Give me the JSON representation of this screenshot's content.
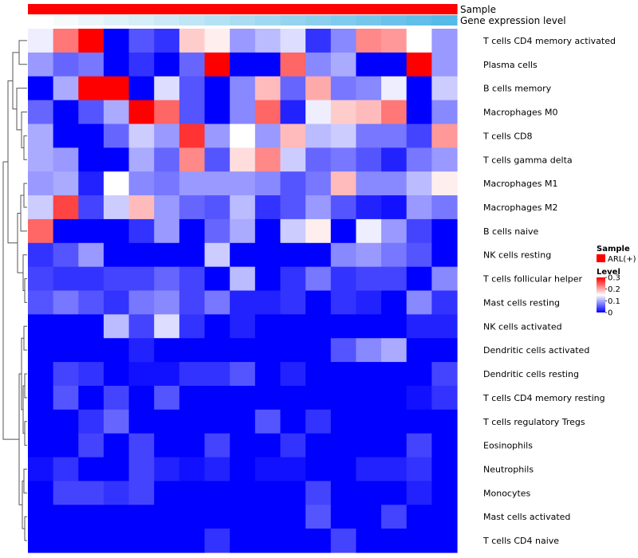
{
  "chart_data": {
    "type": "heatmap",
    "title": "",
    "annotations": [
      {
        "name": "Sample",
        "colors": [
          "#ff0000",
          "#ff0000",
          "#ff0000",
          "#ff0000",
          "#ff0000",
          "#ff0000",
          "#ff0000",
          "#ff0000",
          "#ff0000",
          "#ff0000",
          "#ff0000",
          "#ff0000",
          "#ff0000",
          "#ff0000",
          "#ff0000",
          "#ff0000",
          "#ff0000"
        ]
      },
      {
        "name": "Gene expression level",
        "colors": [
          "#ffffff",
          "#f5fbfd",
          "#eaf6fb",
          "#e0f2f9",
          "#d5eef8",
          "#cbe9f6",
          "#c0e5f5",
          "#b5e1f4",
          "#aadcf2",
          "#a0d8f1",
          "#95d3ef",
          "#8acfee",
          "#7fcbed",
          "#75c6eb",
          "#6ac2ea",
          "#60bee8",
          "#55bae7"
        ]
      }
    ],
    "rows": [
      "T cells CD4 memory activated",
      "Plasma cells",
      "B cells memory",
      "Macrophages M0",
      "T cells CD8",
      "T cells gamma delta",
      "Macrophages M1",
      "Macrophages M2",
      "B cells naive",
      "NK cells resting",
      "T cells follicular helper",
      "Mast cells resting",
      "NK cells activated",
      "Dendritic cells activated",
      "Dendritic cells resting",
      "T cells CD4 memory resting",
      "T cells regulatory  Tregs",
      "Eosinophils",
      "Neutrophils",
      "Monocytes",
      "Mast cells activated",
      "T cells CD4 naive"
    ],
    "values": [
      [
        0.14,
        0.23,
        0.3,
        0.0,
        0.05,
        0.03,
        0.18,
        0.16,
        0.09,
        0.11,
        0.13,
        0.03,
        0.08,
        0.22,
        0.21,
        0.15,
        0.09
      ],
      [
        0.09,
        0.06,
        0.07,
        0.0,
        0.03,
        0.0,
        0.06,
        0.3,
        0.0,
        0.0,
        0.24,
        0.08,
        0.1,
        0.0,
        0.0,
        0.3,
        0.09
      ],
      [
        0.0,
        0.1,
        0.3,
        0.3,
        0.0,
        0.13,
        0.05,
        0.0,
        0.08,
        0.19,
        0.06,
        0.2,
        0.07,
        0.08,
        0.14,
        0.0,
        0.12
      ],
      [
        0.06,
        0.0,
        0.05,
        0.1,
        0.3,
        0.24,
        0.05,
        0.0,
        0.08,
        0.24,
        0.02,
        0.14,
        0.18,
        0.19,
        0.23,
        0.0,
        0.08
      ],
      [
        0.1,
        0.0,
        0.0,
        0.06,
        0.12,
        0.09,
        0.27,
        0.09,
        0.15,
        0.09,
        0.19,
        0.11,
        0.12,
        0.07,
        0.07,
        0.04,
        0.21
      ],
      [
        0.1,
        0.09,
        0.0,
        0.0,
        0.1,
        0.06,
        0.22,
        0.05,
        0.17,
        0.22,
        0.12,
        0.06,
        0.07,
        0.05,
        0.02,
        0.07,
        0.09
      ],
      [
        0.09,
        0.1,
        0.02,
        0.15,
        0.08,
        0.07,
        0.09,
        0.09,
        0.09,
        0.08,
        0.05,
        0.07,
        0.19,
        0.08,
        0.08,
        0.11,
        0.16
      ],
      [
        0.12,
        0.26,
        0.04,
        0.12,
        0.19,
        0.09,
        0.06,
        0.05,
        0.11,
        0.03,
        0.05,
        0.09,
        0.05,
        0.02,
        0.01,
        0.09,
        0.07
      ],
      [
        0.24,
        0.0,
        0.0,
        0.0,
        0.03,
        0.09,
        0.0,
        0.06,
        0.1,
        0.0,
        0.12,
        0.16,
        0.0,
        0.14,
        0.09,
        0.04,
        0.0
      ],
      [
        0.03,
        0.05,
        0.09,
        0.0,
        0.0,
        0.0,
        0.0,
        0.12,
        0.0,
        0.0,
        0.0,
        0.0,
        0.08,
        0.09,
        0.07,
        0.05,
        0.0
      ],
      [
        0.04,
        0.03,
        0.03,
        0.04,
        0.04,
        0.06,
        0.04,
        0.0,
        0.11,
        0.0,
        0.03,
        0.07,
        0.03,
        0.04,
        0.04,
        0.0,
        0.08
      ],
      [
        0.05,
        0.07,
        0.05,
        0.03,
        0.07,
        0.08,
        0.04,
        0.07,
        0.02,
        0.02,
        0.03,
        0.0,
        0.03,
        0.02,
        0.0,
        0.08,
        0.03
      ],
      [
        0.0,
        0.0,
        0.0,
        0.11,
        0.04,
        0.13,
        0.03,
        0.0,
        0.02,
        0.0,
        0.0,
        0.0,
        0.0,
        0.0,
        0.0,
        0.02,
        0.02
      ],
      [
        0.0,
        0.0,
        0.0,
        0.0,
        0.02,
        0.0,
        0.0,
        0.0,
        0.0,
        0.0,
        0.0,
        0.0,
        0.05,
        0.08,
        0.1,
        0.0,
        0.0
      ],
      [
        0.0,
        0.04,
        0.03,
        0.0,
        0.01,
        0.01,
        0.03,
        0.03,
        0.05,
        0.0,
        0.02,
        0.0,
        0.0,
        0.0,
        0.0,
        0.0,
        0.04
      ],
      [
        0.0,
        0.05,
        0.0,
        0.04,
        0.0,
        0.05,
        0.0,
        0.0,
        0.0,
        0.0,
        0.0,
        0.0,
        0.0,
        0.0,
        0.0,
        0.01,
        0.03
      ],
      [
        0.0,
        0.0,
        0.03,
        0.06,
        0.0,
        0.0,
        0.0,
        0.0,
        0.0,
        0.05,
        0.0,
        0.03,
        0.0,
        0.0,
        0.0,
        0.0,
        0.0
      ],
      [
        0.0,
        0.0,
        0.04,
        0.0,
        0.04,
        0.0,
        0.0,
        0.04,
        0.0,
        0.0,
        0.03,
        0.0,
        0.0,
        0.0,
        0.0,
        0.04,
        0.0
      ],
      [
        0.01,
        0.03,
        0.0,
        0.0,
        0.04,
        0.02,
        0.01,
        0.02,
        0.0,
        0.01,
        0.01,
        0.0,
        0.0,
        0.02,
        0.02,
        0.03,
        0.0
      ],
      [
        0.0,
        0.04,
        0.04,
        0.03,
        0.04,
        0.0,
        0.0,
        0.0,
        0.0,
        0.0,
        0.0,
        0.04,
        0.0,
        0.0,
        0.0,
        0.02,
        0.0
      ],
      [
        0.0,
        0.0,
        0.0,
        0.0,
        0.0,
        0.0,
        0.0,
        0.0,
        0.0,
        0.0,
        0.0,
        0.05,
        0.0,
        0.0,
        0.04,
        0.0,
        0.0
      ],
      [
        0.0,
        0.0,
        0.0,
        0.0,
        0.0,
        0.0,
        0.0,
        0.03,
        0.0,
        0.0,
        0.0,
        0.0,
        0.04,
        0.0,
        0.0,
        0.0,
        0.0
      ]
    ],
    "color_scale": {
      "domain": [
        0,
        0.15,
        0.3
      ],
      "colors": [
        "#0000ff",
        "#ffffff",
        "#ff0000"
      ]
    },
    "legend": {
      "position": "right",
      "sample_title": "Sample",
      "sample_item": "ARL(+)",
      "sample_color": "#ff0000",
      "level_title": "Level",
      "level_ticks": [
        "0.3",
        "0.2",
        "0.1",
        "0"
      ]
    },
    "dendrogram": "rows (left)"
  }
}
